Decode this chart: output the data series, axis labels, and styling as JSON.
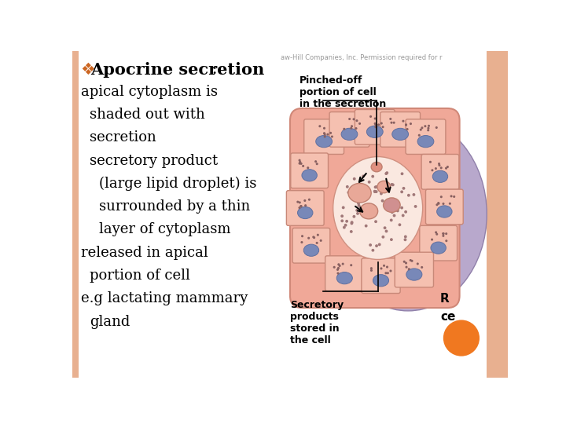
{
  "background_color": "#ffffff",
  "right_border_color": "#e8b090",
  "left_border_color": "#e8b090",
  "title_text_bold": "Apocrine secretion",
  "title_colon": " :",
  "title_color": "#000000",
  "title_fontsize": 15,
  "bullet_color": "#cc6622",
  "bullet_char": "❖",
  "body_lines": [
    {
      "text": "apical cytoplasm is",
      "indent": 0,
      "fontsize": 13
    },
    {
      "text": "shaded out with",
      "indent": 1,
      "fontsize": 13
    },
    {
      "text": "secretion",
      "indent": 1,
      "fontsize": 13
    },
    {
      "text": "secretory product",
      "indent": 1,
      "fontsize": 13
    },
    {
      "text": "(large lipid droplet) is",
      "indent": 2,
      "fontsize": 13
    },
    {
      "text": "surrounded by a thin",
      "indent": 2,
      "fontsize": 13
    },
    {
      "text": "layer of cytoplasm",
      "indent": 2,
      "fontsize": 13
    },
    {
      "text": "released in apical",
      "indent": 0,
      "fontsize": 13
    },
    {
      "text": "portion of cell",
      "indent": 1,
      "fontsize": 13
    },
    {
      "text": "e.g lactating mammary",
      "indent": 0,
      "fontsize": 13
    },
    {
      "text": "gland",
      "indent": 1,
      "fontsize": 13
    }
  ],
  "watermark_text": "aw-Hill Companies, Inc. Permission required for r",
  "watermark_fontsize": 6,
  "watermark_color": "#999999",
  "orange_circle_color": "#f07820",
  "label_pinched": "Pinched-off\nportion of cell\nin the secretion",
  "label_secretory": "Secretory\nproducts\nstored in\nthe cell",
  "label_r": "R",
  "label_ce": "ce"
}
